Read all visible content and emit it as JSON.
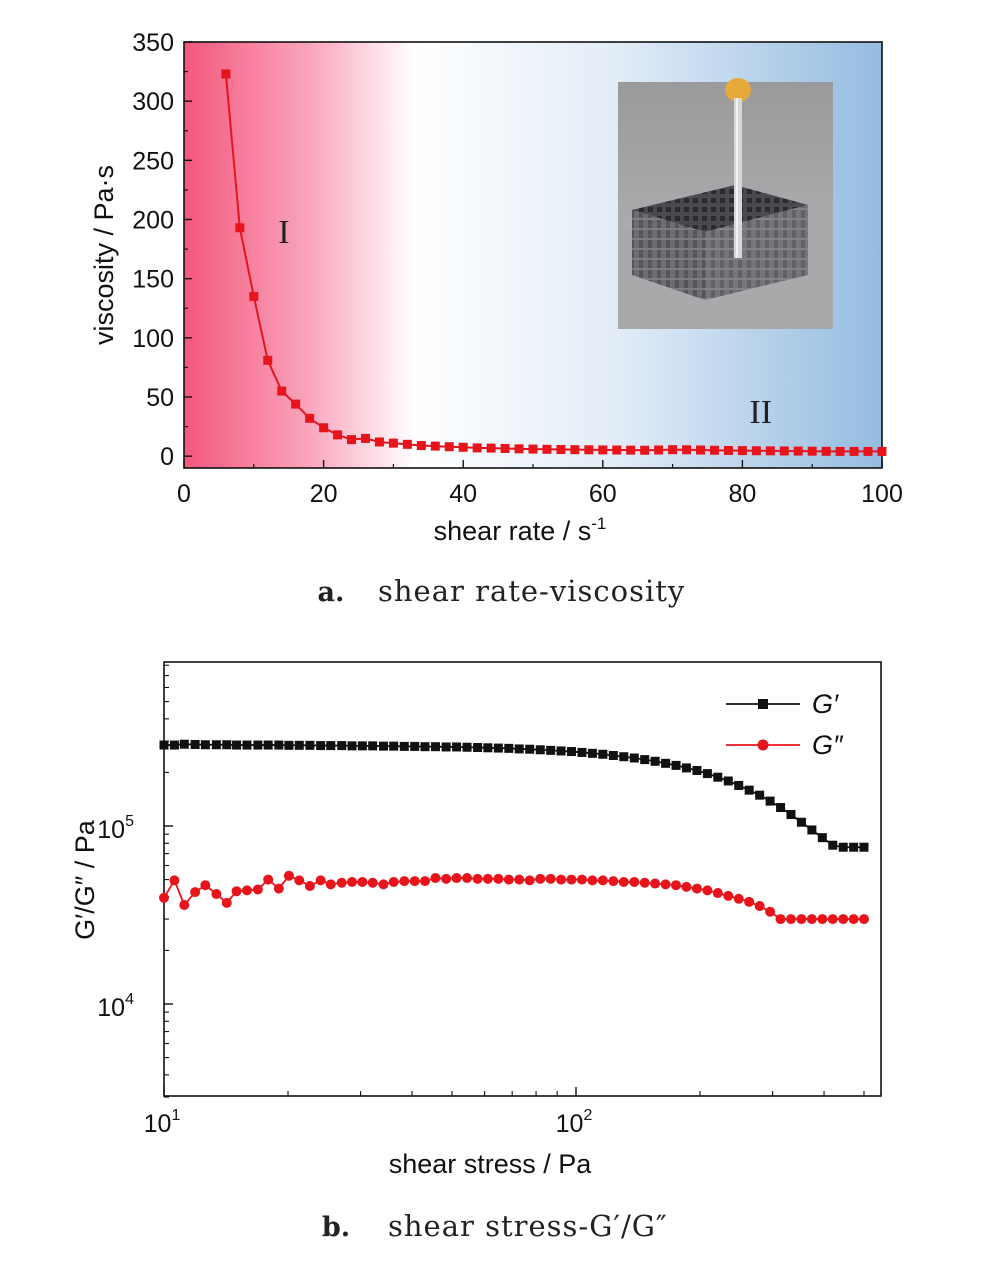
{
  "colors": {
    "line_a": "#e8141c",
    "gprime": "#111111",
    "gdouble": "#e8141c",
    "bg_left": "#f4587c",
    "bg_right": "#94bce0"
  },
  "chart_data": [
    {
      "type": "line",
      "caption_letter": "a.",
      "caption": "shear rate-viscosity",
      "xlabel": "shear rate / s",
      "xlabel_sup": "-1",
      "ylabel": "viscosity / Pa·s",
      "xlim": [
        0,
        100
      ],
      "ylim": [
        -10,
        350
      ],
      "xticks": [
        0,
        20,
        40,
        60,
        80,
        100
      ],
      "yticks": [
        0,
        50,
        100,
        150,
        200,
        250,
        300,
        350
      ],
      "background": "gradient pink-to-blue",
      "inset_photo": "printed lattice scaffold with nozzle",
      "annotations": [
        {
          "text": "I",
          "x": 13.5,
          "y": 180
        },
        {
          "text": "II",
          "x": 81,
          "y": 28
        }
      ],
      "series": [
        {
          "x": [
            6,
            8,
            10,
            12,
            14,
            16,
            18,
            20,
            22,
            24,
            26,
            28,
            30,
            32,
            34,
            36,
            38,
            40,
            42,
            44,
            46,
            48,
            50,
            52,
            54,
            56,
            58,
            60,
            62,
            64,
            66,
            68,
            70,
            72,
            74,
            76,
            78,
            80,
            82,
            84,
            86,
            88,
            90,
            92,
            94,
            96,
            98,
            100
          ],
          "y": [
            323,
            193,
            135,
            81,
            55,
            44,
            32,
            24,
            18,
            14,
            15,
            12,
            11,
            10,
            9,
            8.5,
            8,
            7.5,
            7,
            6.8,
            6.5,
            6.2,
            6,
            5.8,
            5.6,
            5.5,
            5.4,
            5.3,
            5.2,
            5.1,
            5,
            5.2,
            5.5,
            5.4,
            5.2,
            5,
            4.8,
            4.7,
            4.6,
            4.5,
            4.4,
            4.3,
            4.2,
            4.1,
            4,
            4,
            4,
            4
          ]
        }
      ]
    },
    {
      "type": "scatter",
      "caption_letter": "b.",
      "caption": "shear stress-G′/G″",
      "xlabel": "shear stress / Pa",
      "ylabel": "G′/G″ / Pa",
      "xscale": "log",
      "yscale": "log",
      "xlim": [
        10,
        500
      ],
      "ylim": [
        3000,
        800000
      ],
      "xticks": [
        10,
        100
      ],
      "xtick_labels": [
        {
          "base": "10",
          "exp": "1"
        },
        {
          "base": "10",
          "exp": "2"
        }
      ],
      "yticks": [
        10000,
        100000
      ],
      "ytick_labels": [
        {
          "base": "10",
          "exp": "4"
        },
        {
          "base": "10",
          "exp": "5"
        }
      ],
      "legend": {
        "position": "top-right",
        "entries": [
          "G′",
          "G″"
        ]
      },
      "series": [
        {
          "name": "G′",
          "marker": "square",
          "x": [
            10,
            10.6,
            11.2,
            11.9,
            12.6,
            13.4,
            14.2,
            15,
            15.9,
            16.9,
            17.9,
            19,
            20.1,
            21.3,
            22.6,
            24,
            25.4,
            27,
            28.6,
            30.3,
            32.1,
            34.1,
            36.1,
            38.3,
            40.6,
            43,
            45.6,
            48.4,
            51.3,
            54.4,
            57.7,
            61.1,
            64.8,
            68.7,
            72.8,
            77.2,
            81.9,
            86.8,
            92,
            97.5,
            103.4,
            109.6,
            116.2,
            123.2,
            130.6,
            138.5,
            146.8,
            155.6,
            165,
            174.9,
            185.4,
            196.6,
            208.4,
            220.9,
            234.2,
            248.3,
            263.2,
            279.1,
            295.9,
            313.7,
            332.5,
            352.5,
            373.7,
            396.2,
            420,
            445.3,
            472,
            500
          ],
          "y": [
            285000,
            285000,
            288000,
            287000,
            286000,
            286000,
            286000,
            285000,
            285000,
            285000,
            285000,
            285000,
            284000,
            284000,
            284000,
            283000,
            283000,
            283000,
            282000,
            282000,
            282000,
            281000,
            281000,
            280000,
            280000,
            279000,
            279000,
            278000,
            278000,
            277000,
            276000,
            275000,
            274000,
            273000,
            271000,
            270000,
            268000,
            266000,
            264000,
            262000,
            259000,
            256000,
            253000,
            249000,
            245000,
            241000,
            236000,
            231000,
            225000,
            219000,
            212000,
            205000,
            197000,
            188000,
            179000,
            169000,
            159000,
            149000,
            138000,
            127000,
            116000,
            105000,
            95000,
            86000,
            78000,
            76000,
            76000,
            76000
          ]
        },
        {
          "name": "G″",
          "marker": "circle",
          "x": [
            10,
            10.6,
            11.2,
            11.9,
            12.6,
            13.4,
            14.2,
            15,
            15.9,
            16.9,
            17.9,
            19,
            20.1,
            21.3,
            22.6,
            24,
            25.4,
            27,
            28.6,
            30.3,
            32.1,
            34.1,
            36.1,
            38.3,
            40.6,
            43,
            45.6,
            48.4,
            51.3,
            54.4,
            57.7,
            61.1,
            64.8,
            68.7,
            72.8,
            77.2,
            81.9,
            86.8,
            92,
            97.5,
            103.4,
            109.6,
            116.2,
            123.2,
            130.6,
            138.5,
            146.8,
            155.6,
            165,
            174.9,
            185.4,
            196.6,
            208.4,
            220.9,
            234.2,
            248.3,
            263.2,
            279.1,
            295.9,
            313.7,
            332.5,
            352.5,
            373.7,
            396.2,
            420,
            445.3,
            472,
            500
          ],
          "y": [
            39500,
            49500,
            36000,
            42500,
            46500,
            41500,
            37000,
            43000,
            43500,
            44000,
            50000,
            44500,
            52500,
            49500,
            46000,
            49500,
            47000,
            48000,
            48500,
            48500,
            48000,
            47000,
            48500,
            49000,
            49000,
            49000,
            51000,
            50500,
            51000,
            51000,
            50500,
            50500,
            50500,
            50000,
            50000,
            49500,
            50500,
            50500,
            50000,
            50000,
            50000,
            49500,
            49500,
            49000,
            48500,
            48500,
            48000,
            47500,
            47000,
            46500,
            45500,
            44500,
            43500,
            42000,
            40500,
            39000,
            37500,
            35500,
            33000,
            30000,
            30000,
            30000,
            30000,
            30000,
            30000,
            30000,
            30000,
            30000
          ]
        }
      ]
    }
  ]
}
